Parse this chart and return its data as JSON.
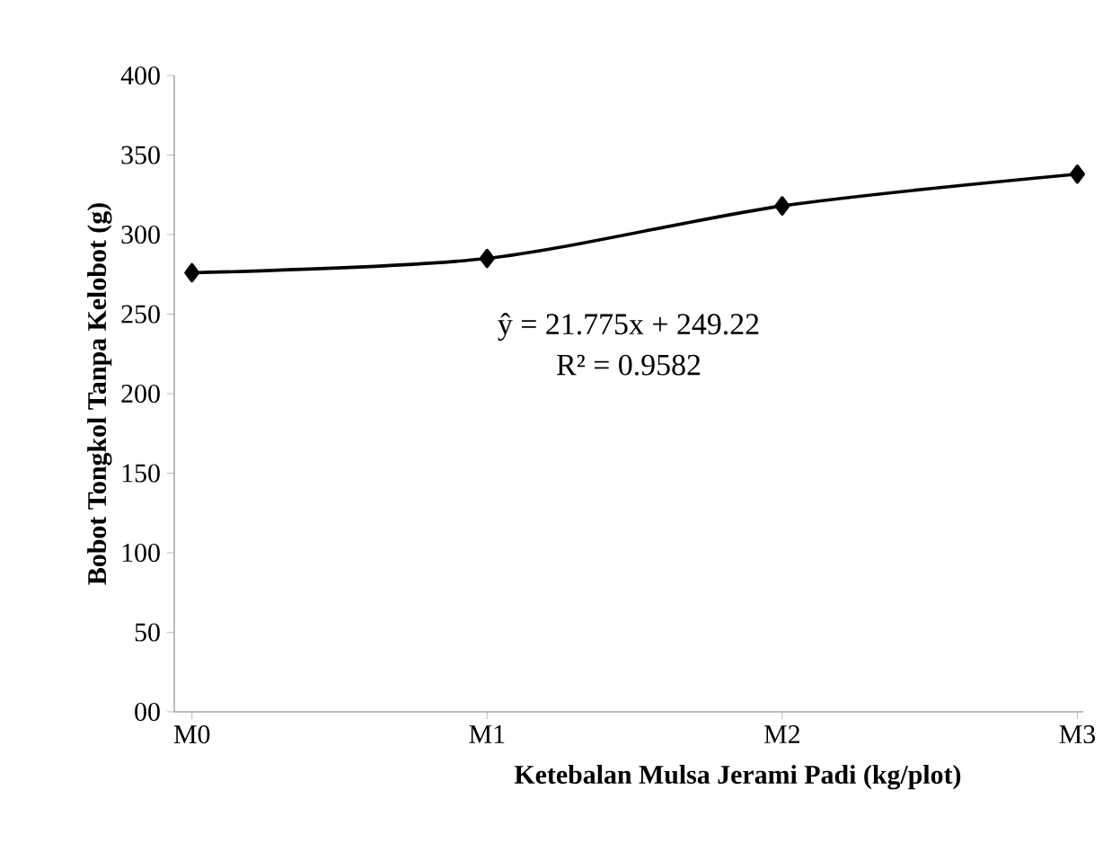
{
  "chart_data": {
    "type": "line",
    "xlabel": "Ketebalan Mulsa Jerami Padi (kg/plot)",
    "ylabel": "Bobot Tongkol Tanpa Kelobot  (g)",
    "categories": [
      "M0",
      "M1",
      "M2",
      "M3"
    ],
    "series": [
      {
        "color": "#000000",
        "values": [
          276,
          285,
          318,
          338
        ]
      }
    ],
    "ylim": [
      0,
      400
    ],
    "yticks": [
      {
        "value": 0,
        "label": "00"
      },
      50,
      100,
      150,
      200,
      250,
      300,
      350,
      400
    ],
    "marker": "diamond",
    "line_style": "solid",
    "grid": false,
    "annotations": [
      "ŷ = 21.775x + 249.22",
      "R² = 0.9582"
    ]
  }
}
